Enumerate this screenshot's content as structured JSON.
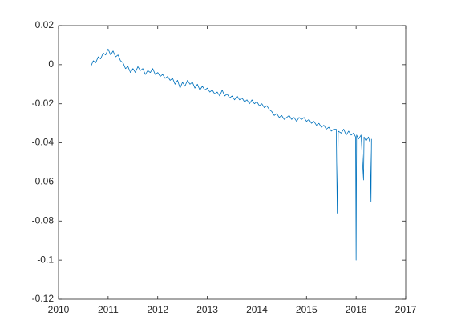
{
  "chart_data": {
    "type": "line",
    "x": [
      2010.65,
      2010.7,
      2010.75,
      2010.8,
      2010.85,
      2010.9,
      2010.95,
      2011.0,
      2011.05,
      2011.1,
      2011.15,
      2011.2,
      2011.25,
      2011.3,
      2011.35,
      2011.4,
      2011.45,
      2011.5,
      2011.55,
      2011.6,
      2011.65,
      2011.7,
      2011.75,
      2011.8,
      2011.85,
      2011.9,
      2011.95,
      2012.0,
      2012.05,
      2012.1,
      2012.15,
      2012.2,
      2012.25,
      2012.3,
      2012.35,
      2012.4,
      2012.45,
      2012.5,
      2012.55,
      2012.6,
      2012.65,
      2012.7,
      2012.75,
      2012.8,
      2012.85,
      2012.9,
      2012.95,
      2013.0,
      2013.05,
      2013.1,
      2013.15,
      2013.2,
      2013.25,
      2013.3,
      2013.35,
      2013.4,
      2013.45,
      2013.5,
      2013.55,
      2013.6,
      2013.65,
      2013.7,
      2013.75,
      2013.8,
      2013.85,
      2013.9,
      2013.95,
      2014.0,
      2014.05,
      2014.1,
      2014.15,
      2014.2,
      2014.25,
      2014.3,
      2014.35,
      2014.4,
      2014.45,
      2014.5,
      2014.55,
      2014.6,
      2014.65,
      2014.7,
      2014.75,
      2014.8,
      2014.85,
      2014.9,
      2014.95,
      2015.0,
      2015.05,
      2015.1,
      2015.15,
      2015.2,
      2015.25,
      2015.3,
      2015.35,
      2015.4,
      2015.45,
      2015.5,
      2015.55,
      2015.6,
      2015.62,
      2015.64,
      2015.7,
      2015.75,
      2015.8,
      2015.85,
      2015.9,
      2015.95,
      2015.99,
      2016.0,
      2016.01,
      2016.05,
      2016.1,
      2016.15,
      2016.16,
      2016.2,
      2016.25,
      2016.28,
      2016.3,
      2016.31
    ],
    "series": [
      {
        "color": "#0072bd",
        "values": [
          -0.001,
          0.002,
          0.001,
          0.004,
          0.003,
          0.006,
          0.005,
          0.008,
          0.005,
          0.007,
          0.004,
          0.005,
          0.002,
          0.001,
          -0.002,
          -0.001,
          -0.004,
          -0.002,
          -0.004,
          -0.001,
          -0.003,
          -0.002,
          -0.005,
          -0.003,
          -0.004,
          -0.002,
          -0.005,
          -0.004,
          -0.006,
          -0.005,
          -0.007,
          -0.006,
          -0.008,
          -0.007,
          -0.01,
          -0.008,
          -0.012,
          -0.009,
          -0.011,
          -0.008,
          -0.01,
          -0.009,
          -0.012,
          -0.01,
          -0.013,
          -0.011,
          -0.013,
          -0.012,
          -0.014,
          -0.013,
          -0.015,
          -0.014,
          -0.016,
          -0.013,
          -0.016,
          -0.015,
          -0.017,
          -0.016,
          -0.018,
          -0.016,
          -0.018,
          -0.017,
          -0.019,
          -0.018,
          -0.02,
          -0.018,
          -0.02,
          -0.019,
          -0.021,
          -0.02,
          -0.022,
          -0.021,
          -0.023,
          -0.024,
          -0.026,
          -0.025,
          -0.027,
          -0.026,
          -0.028,
          -0.027,
          -0.026,
          -0.028,
          -0.027,
          -0.029,
          -0.027,
          -0.028,
          -0.027,
          -0.029,
          -0.028,
          -0.03,
          -0.029,
          -0.031,
          -0.03,
          -0.032,
          -0.031,
          -0.033,
          -0.032,
          -0.034,
          -0.033,
          -0.033,
          -0.076,
          -0.034,
          -0.035,
          -0.033,
          -0.036,
          -0.034,
          -0.036,
          -0.035,
          -0.037,
          -0.1,
          -0.036,
          -0.038,
          -0.036,
          -0.059,
          -0.037,
          -0.039,
          -0.037,
          -0.04,
          -0.07,
          -0.038
        ]
      }
    ],
    "xlim": [
      2010,
      2017
    ],
    "xticks": [
      2010,
      2011,
      2012,
      2013,
      2014,
      2015,
      2016,
      2017
    ],
    "ylim": [
      -0.12,
      0.02
    ],
    "yticks": [
      -0.12,
      -0.1,
      -0.08,
      -0.06,
      -0.04,
      -0.02,
      0,
      0.02
    ]
  }
}
